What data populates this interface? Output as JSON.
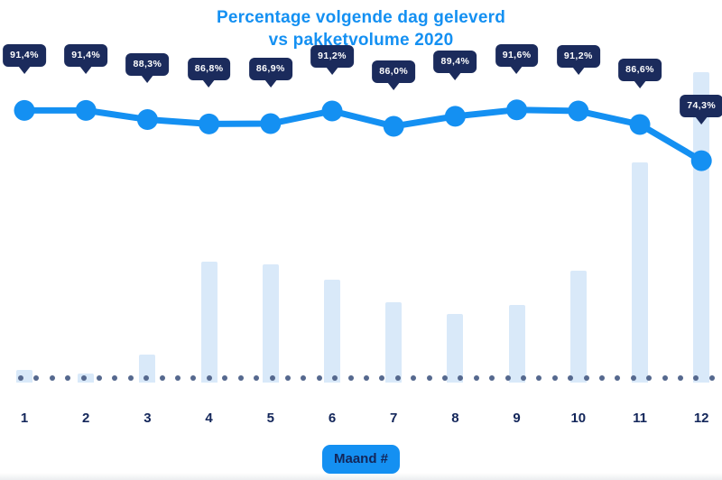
{
  "title": {
    "line1": "Percentage volgende dag geleverd",
    "line2": "vs pakketvolume 2020"
  },
  "axis": {
    "badge_label": "Maand #",
    "categories": [
      "1",
      "2",
      "3",
      "4",
      "5",
      "6",
      "7",
      "8",
      "9",
      "10",
      "11",
      "12"
    ]
  },
  "chart_data": {
    "type": "combo",
    "categories": [
      "1",
      "2",
      "3",
      "4",
      "5",
      "6",
      "7",
      "8",
      "9",
      "10",
      "11",
      "12"
    ],
    "title": "Percentage volgende dag geleverd vs pakketvolume 2020",
    "xlabel": "Maand #",
    "series": [
      {
        "name": "percentage-volgende-dag-geleverd",
        "type": "line",
        "unit": "%",
        "values": [
          91.4,
          91.4,
          88.3,
          86.8,
          86.9,
          91.2,
          86.0,
          89.4,
          91.6,
          91.2,
          86.6,
          74.3
        ],
        "labels": [
          "91,4%",
          "91,4%",
          "88,3%",
          "86,8%",
          "86,9%",
          "91,2%",
          "86,0%",
          "89,4%",
          "91,6%",
          "91,2%",
          "86,6%",
          "74,3%"
        ]
      },
      {
        "name": "pakketvolume",
        "type": "bar",
        "unit": "relative-%-of-max",
        "values": [
          4,
          3,
          9,
          39,
          38,
          33,
          26,
          22,
          25,
          36,
          71,
          100
        ]
      }
    ],
    "layout": {
      "legend": "none",
      "grid": "off",
      "baseline": "dotted",
      "value_labels": "tooltip-bubbles-above-line-points"
    }
  },
  "colors": {
    "blue": "#1490f2",
    "navy": "#1b2b5c",
    "axis": "#13265a",
    "barfill": "#d9e9f9",
    "dot": "#55688e"
  }
}
